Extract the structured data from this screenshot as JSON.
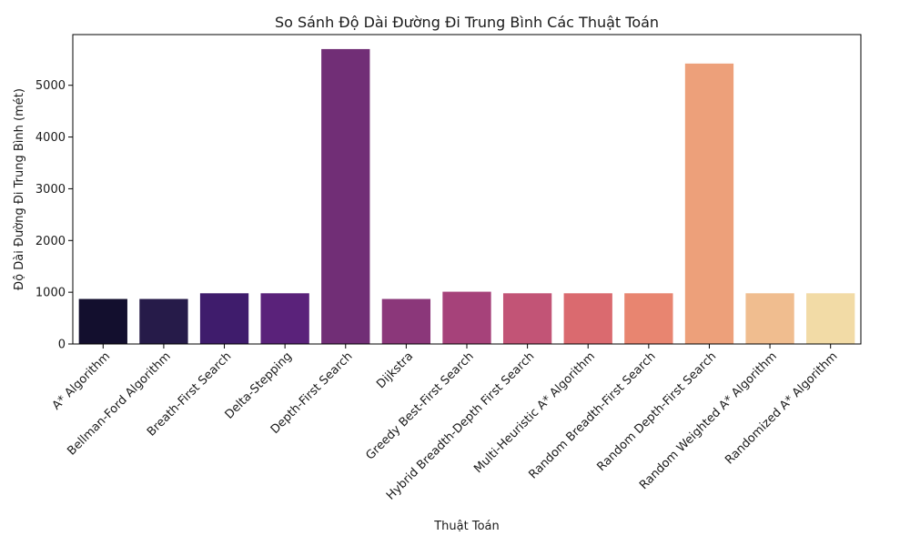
{
  "chart_data": {
    "type": "bar",
    "title": "So Sánh Độ Dài Đường Đi Trung Bình Các Thuật Toán",
    "xlabel": "Thuật Toán",
    "ylabel": "Độ Dài Đường Đi Trung Bình (mét)",
    "ylim": [
      0,
      5980
    ],
    "yticks": [
      0,
      1000,
      2000,
      3000,
      4000,
      5000
    ],
    "grid": false,
    "categories": [
      "A* Algorithm",
      "Bellman-Ford Algorithm",
      "Breath-First Search",
      "Delta-Stepping",
      "Depth-First Search",
      "Dijkstra",
      "Greedy Best-First Search",
      "Hybrid Breadth-Depth First Search",
      "Multi-Heuristic A* Algorithm",
      "Random Breadth-First Search",
      "Random Depth-First Search",
      "Random Weighted A* Algorithm",
      "Randomized A* Algorithm"
    ],
    "values": [
      870,
      870,
      980,
      980,
      5700,
      870,
      1010,
      980,
      980,
      980,
      5420,
      980,
      980
    ],
    "colors": [
      "#130f2e",
      "#261b49",
      "#3f1c6c",
      "#5a227a",
      "#712e76",
      "#8b377a",
      "#a6427a",
      "#c25476",
      "#da6a6f",
      "#e88570",
      "#eda07a",
      "#f0bd8f",
      "#f2dba6"
    ]
  }
}
